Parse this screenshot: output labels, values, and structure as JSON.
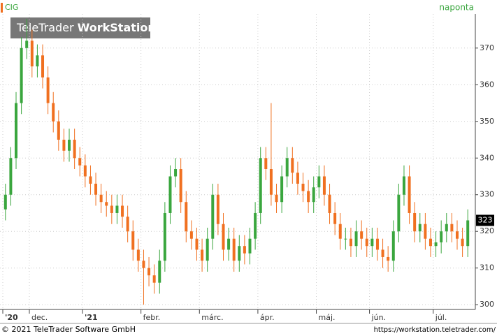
{
  "chart_data": {
    "type": "candlestick",
    "title": "CIG",
    "subtitle": "naponta",
    "logo": [
      "TeleTrader",
      "WorkStation"
    ],
    "categories": [
      "'20",
      null,
      null,
      null,
      null,
      "dec.",
      null,
      null,
      null,
      null,
      null,
      null,
      null,
      null,
      null,
      "'21",
      null,
      null,
      null,
      null,
      null,
      null,
      null,
      null,
      null,
      null,
      "febr.",
      null,
      null,
      null,
      null,
      null,
      null,
      null,
      null,
      null,
      null,
      "márc.",
      null,
      null,
      null,
      null,
      null,
      null,
      null,
      null,
      null,
      null,
      "ápr.",
      null,
      null,
      null,
      null,
      null,
      null,
      null,
      null,
      null,
      null,
      "máj.",
      null,
      null,
      null,
      null,
      null,
      null,
      null,
      null,
      null,
      "jún.",
      null,
      null,
      null,
      null,
      null,
      null,
      null,
      null,
      null,
      null,
      null,
      "júl.",
      null,
      null,
      null,
      null,
      null,
      null
    ],
    "open": [
      326,
      330,
      340,
      355,
      370,
      372,
      365,
      368,
      362,
      355,
      350,
      345,
      342,
      345,
      340,
      338,
      335,
      333,
      330,
      328,
      327,
      325,
      327,
      324,
      320,
      315,
      312,
      310,
      308,
      306,
      312,
      325,
      335,
      337,
      328,
      320,
      318,
      315,
      312,
      318,
      330,
      322,
      315,
      318,
      312,
      316,
      314,
      318,
      325,
      340,
      337,
      330,
      328,
      335,
      340,
      336,
      333,
      331,
      328,
      332,
      335,
      330,
      325,
      322,
      318,
      318,
      316,
      320,
      318,
      316,
      318,
      315,
      313,
      312,
      320,
      330,
      335,
      325,
      320,
      322,
      318,
      316,
      317,
      320,
      322,
      320,
      318,
      316
    ],
    "high": [
      333,
      343,
      358,
      373,
      378,
      375,
      371,
      371,
      365,
      358,
      353,
      348,
      348,
      348,
      343,
      341,
      338,
      336,
      333,
      331,
      330,
      330,
      330,
      327,
      323,
      318,
      315,
      313,
      311,
      315,
      328,
      338,
      340,
      340,
      331,
      323,
      321,
      318,
      321,
      333,
      333,
      325,
      321,
      321,
      319,
      319,
      321,
      328,
      343,
      343,
      355,
      333,
      338,
      343,
      343,
      339,
      336,
      334,
      335,
      338,
      338,
      333,
      328,
      325,
      321,
      321,
      323,
      323,
      321,
      321,
      321,
      318,
      316,
      323,
      333,
      338,
      338,
      328,
      325,
      325,
      321,
      320,
      323,
      325,
      325,
      323,
      321,
      326
    ],
    "low": [
      323,
      327,
      337,
      352,
      367,
      362,
      362,
      359,
      352,
      347,
      342,
      339,
      339,
      337,
      335,
      332,
      330,
      327,
      325,
      324,
      322,
      322,
      321,
      317,
      312,
      309,
      300,
      305,
      303,
      303,
      309,
      322,
      332,
      325,
      317,
      315,
      312,
      309,
      309,
      315,
      319,
      312,
      312,
      309,
      309,
      311,
      311,
      315,
      322,
      334,
      327,
      325,
      325,
      332,
      333,
      330,
      328,
      325,
      325,
      329,
      327,
      322,
      319,
      315,
      315,
      313,
      313,
      315,
      313,
      313,
      312,
      310,
      309,
      309,
      317,
      327,
      322,
      317,
      317,
      315,
      313,
      313,
      314,
      317,
      317,
      315,
      313,
      313
    ],
    "close": [
      330,
      340,
      355,
      370,
      372,
      365,
      368,
      362,
      355,
      350,
      345,
      342,
      345,
      340,
      338,
      335,
      333,
      330,
      328,
      327,
      325,
      327,
      324,
      320,
      315,
      312,
      310,
      308,
      306,
      312,
      325,
      335,
      337,
      328,
      320,
      318,
      315,
      312,
      318,
      330,
      322,
      315,
      318,
      312,
      316,
      314,
      318,
      325,
      340,
      337,
      330,
      328,
      335,
      340,
      336,
      333,
      331,
      328,
      332,
      335,
      330,
      325,
      322,
      318,
      318,
      316,
      320,
      318,
      316,
      318,
      315,
      313,
      312,
      320,
      330,
      335,
      325,
      320,
      322,
      318,
      316,
      317,
      320,
      322,
      320,
      318,
      316,
      323
    ],
    "up_color": "#3aa63e",
    "down_color": "#f07020",
    "ylim": [
      298.7,
      379.3
    ],
    "yticks": [
      300,
      310,
      320,
      330,
      340,
      350,
      360,
      370
    ],
    "grid": true
  },
  "footer": {
    "copyright": "© 2021 TeleTrader Software GmbH",
    "url": "https://workstation.teletrader.com/"
  }
}
